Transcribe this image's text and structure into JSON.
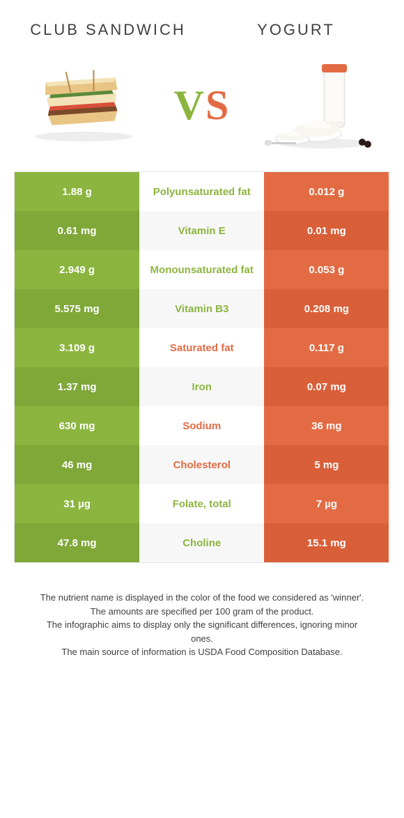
{
  "colors": {
    "green": "#8bb53f",
    "green_dark": "#7fa838",
    "orange": "#e36b44",
    "orange_dark": "#d95f38",
    "text_green": "#8bb53f",
    "text_orange": "#e36b44"
  },
  "header": {
    "left_title": "CLUB SANDWICH",
    "right_title": "YOGURT",
    "vs": "VS"
  },
  "rows": [
    {
      "left": "1.88 g",
      "label": "Polyunsaturated fat",
      "right": "0.012 g",
      "winner": "green"
    },
    {
      "left": "0.61 mg",
      "label": "Vitamin E",
      "right": "0.01 mg",
      "winner": "green"
    },
    {
      "left": "2.949 g",
      "label": "Monounsaturated fat",
      "right": "0.053 g",
      "winner": "green"
    },
    {
      "left": "5.575 mg",
      "label": "Vitamin B3",
      "right": "0.208 mg",
      "winner": "green"
    },
    {
      "left": "3.109 g",
      "label": "Saturated fat",
      "right": "0.117 g",
      "winner": "orange"
    },
    {
      "left": "1.37 mg",
      "label": "Iron",
      "right": "0.07 mg",
      "winner": "green"
    },
    {
      "left": "630 mg",
      "label": "Sodium",
      "right": "36 mg",
      "winner": "orange"
    },
    {
      "left": "46 mg",
      "label": "Cholesterol",
      "right": "5 mg",
      "winner": "orange"
    },
    {
      "left": "31 µg",
      "label": "Folate, total",
      "right": "7 µg",
      "winner": "green"
    },
    {
      "left": "47.8 mg",
      "label": "Choline",
      "right": "15.1 mg",
      "winner": "green"
    }
  ],
  "footer": {
    "line1": "The nutrient name is displayed in the color of the food we considered as 'winner'.",
    "line2": "The amounts are specified per 100 gram of the product.",
    "line3": "The infographic aims to display only the significant differences, ignoring minor ones.",
    "line4": "The main source of information is USDA Food Composition Database."
  }
}
